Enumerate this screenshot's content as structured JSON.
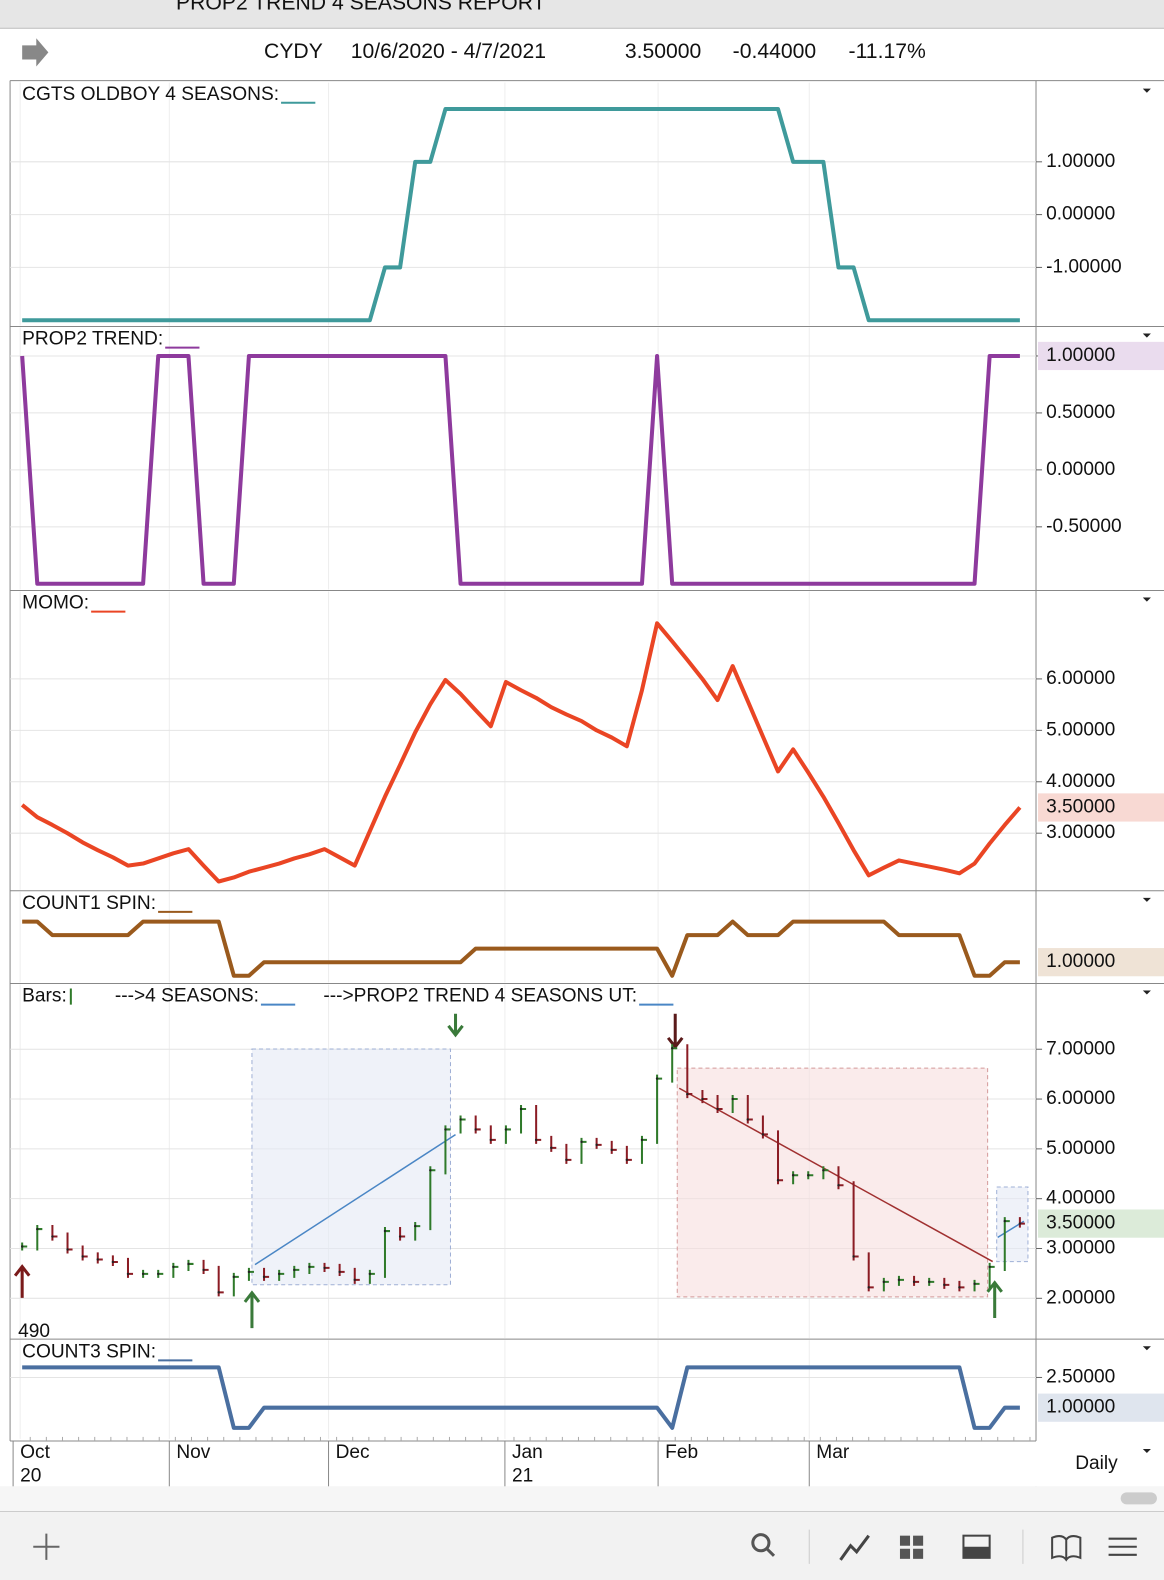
{
  "header": {
    "title": "PROP2 TREND 4 SEASONS  REPORT",
    "symbol": "CYDY",
    "range": "10/6/2020 - 4/7/2021",
    "last": "3.50000",
    "change": "-0.44000",
    "change_pct": "-11.17%"
  },
  "x_axis": {
    "months": [
      "Oct",
      "Nov",
      "Dec",
      "Jan",
      "Feb",
      "Mar"
    ],
    "years": [
      "20",
      "21"
    ]
  },
  "interval": "Daily",
  "chart_data": [
    {
      "type": "line",
      "title": "CGTS OLDBOY 4 SEASONS:",
      "ylim": [
        -2.1,
        2.5
      ],
      "yticks": [
        {
          "value": 1,
          "label": "1.00000"
        },
        {
          "value": 0,
          "label": "0.00000"
        },
        {
          "value": -1,
          "label": "-1.00000"
        }
      ],
      "series": [
        {
          "color": "#3f9a9b",
          "values": [
            -2,
            -2,
            -2,
            -2,
            -2,
            -2,
            -2,
            -2,
            -2,
            -2,
            -2,
            -2,
            -2,
            -2,
            -2,
            -2,
            -2,
            -2,
            -2,
            -2,
            -2,
            -2,
            -2,
            -2,
            -1,
            -1,
            1,
            1,
            2,
            2,
            2,
            2,
            2,
            2,
            2,
            2,
            2,
            2,
            2,
            2,
            2,
            2,
            2,
            2,
            2,
            2,
            2,
            2,
            2,
            2,
            2,
            1,
            1,
            1,
            -1,
            -1,
            -2,
            -2,
            -2,
            -2,
            -2,
            -2,
            -2,
            -2,
            -2,
            -2,
            -2
          ]
        }
      ]
    },
    {
      "type": "line",
      "title": "PROP2 TREND:",
      "ylim": [
        -1.05,
        1.25
      ],
      "yticks": [
        {
          "value": 1,
          "label": "1.00000"
        },
        {
          "value": 0.5,
          "label": "0.50000"
        },
        {
          "value": 0,
          "label": "0.00000"
        },
        {
          "value": -0.5,
          "label": "-0.50000"
        }
      ],
      "last_value": {
        "value": 1,
        "label": "1.00000",
        "color": "#eadcee"
      },
      "series": [
        {
          "color": "#8e3a9d",
          "values": [
            1,
            -1,
            -1,
            -1,
            -1,
            -1,
            -1,
            -1,
            -1,
            1,
            1,
            1,
            -1,
            -1,
            -1,
            1,
            1,
            1,
            1,
            1,
            1,
            1,
            1,
            1,
            1,
            1,
            1,
            1,
            1,
            -1,
            -1,
            -1,
            -1,
            -1,
            -1,
            -1,
            -1,
            -1,
            -1,
            -1,
            -1,
            -1,
            1,
            -1,
            -1,
            -1,
            -1,
            -1,
            -1,
            -1,
            -1,
            -1,
            -1,
            -1,
            -1,
            -1,
            -1,
            -1,
            -1,
            -1,
            -1,
            -1,
            -1,
            -1,
            1,
            1,
            1
          ]
        }
      ]
    },
    {
      "type": "line",
      "title": "MOMO:",
      "ylim": [
        1.9,
        7.7
      ],
      "yticks": [
        {
          "value": 6,
          "label": "6.00000"
        },
        {
          "value": 5,
          "label": "5.00000"
        },
        {
          "value": 4,
          "label": "4.00000"
        },
        {
          "value": 3,
          "label": "3.00000"
        }
      ],
      "last_value": {
        "value": 3.5,
        "label": "3.50000",
        "color": "#f8d9d3"
      },
      "series": [
        {
          "color": "#ea4524",
          "values": [
            3.55,
            3.31,
            3.16,
            3.0,
            2.82,
            2.67,
            2.53,
            2.37,
            2.41,
            2.51,
            2.61,
            2.69,
            2.37,
            2.06,
            2.14,
            2.25,
            2.33,
            2.41,
            2.51,
            2.59,
            2.69,
            2.53,
            2.37,
            3.04,
            3.71,
            4.33,
            4.96,
            5.51,
            5.98,
            5.71,
            5.39,
            5.08,
            5.94,
            5.78,
            5.63,
            5.45,
            5.31,
            5.18,
            5.0,
            4.86,
            4.69,
            5.78,
            7.08,
            6.73,
            6.37,
            6.0,
            5.59,
            6.25,
            5.57,
            4.88,
            4.2,
            4.63,
            4.18,
            3.71,
            3.2,
            2.67,
            2.18,
            2.33,
            2.47,
            2.41,
            2.35,
            2.29,
            2.22,
            2.41,
            2.8,
            3.16,
            3.5
          ]
        }
      ]
    },
    {
      "type": "line",
      "title": "COUNT1 SPIN:",
      "ylim": [
        -0.5,
        6.2
      ],
      "yticks": [],
      "last_value": {
        "value": 1,
        "label": "1.00000",
        "color": "#efe3d6"
      },
      "series": [
        {
          "color": "#9a5a1d",
          "values": [
            4,
            4,
            3,
            3,
            3,
            3,
            3,
            3,
            4,
            4,
            4,
            4,
            4,
            4,
            0,
            0,
            1,
            1,
            1,
            1,
            1,
            1,
            1,
            1,
            1,
            1,
            1,
            1,
            1,
            1,
            2,
            2,
            2,
            2,
            2,
            2,
            2,
            2,
            2,
            2,
            2,
            2,
            2,
            0,
            3,
            3,
            3,
            4,
            3,
            3,
            3,
            4,
            4,
            4,
            4,
            4,
            4,
            4,
            3,
            3,
            3,
            3,
            3,
            0,
            0,
            1,
            1
          ]
        }
      ]
    },
    {
      "type": "ohlc",
      "title": "Bars:",
      "legend_items": [
        "--->4 SEASONS:",
        "--->PROP2 TREND 4 SEASONS UT:"
      ],
      "annotation": "490",
      "ylim": [
        1.2,
        8.3
      ],
      "yticks": [
        {
          "value": 7,
          "label": "7.00000"
        },
        {
          "value": 6,
          "label": "6.00000"
        },
        {
          "value": 5,
          "label": "5.00000"
        },
        {
          "value": 4,
          "label": "4.00000"
        },
        {
          "value": 3,
          "label": "3.00000"
        },
        {
          "value": 2,
          "label": "2.00000"
        }
      ],
      "last_value": {
        "value": 3.5,
        "label": "3.50000",
        "color": "#dcebd9"
      },
      "series": [
        {
          "color": "#2f7a2a",
          "values": [
            3.04,
            3.39,
            3.24,
            2.98,
            2.84,
            2.78,
            2.73,
            2.49,
            2.49,
            2.49,
            2.63,
            2.69,
            2.57,
            2.12,
            2.43,
            2.53,
            2.43,
            2.49,
            2.57,
            2.63,
            2.61,
            2.53,
            2.37,
            2.49,
            3.35,
            3.24,
            3.45,
            4.57,
            5.39,
            5.59,
            5.39,
            5.18,
            5.39,
            5.8,
            5.18,
            5.02,
            4.78,
            5.14,
            5.08,
            4.98,
            4.78,
            5.18,
            6.41,
            7.02,
            6.1,
            6.0,
            5.8,
            6.0,
            5.59,
            5.29,
            4.37,
            4.47,
            4.47,
            4.57,
            4.27,
            2.84,
            2.22,
            2.33,
            2.37,
            2.33,
            2.33,
            2.27,
            2.22,
            2.29,
            2.63,
            3.55,
            3.5
          ]
        }
      ]
    },
    {
      "type": "line",
      "title": "COUNT3 SPIN:",
      "ylim": [
        -0.55,
        4.35
      ],
      "yticks": [
        {
          "value": 2.5,
          "label": "2.50000"
        }
      ],
      "last_value": {
        "value": 1,
        "label": "1.00000",
        "color": "#dfe5ee"
      },
      "series": [
        {
          "color": "#4a6fa0",
          "values": [
            3,
            3,
            3,
            3,
            3,
            3,
            3,
            3,
            3,
            3,
            3,
            3,
            3,
            3,
            0,
            0,
            1,
            1,
            1,
            1,
            1,
            1,
            1,
            1,
            1,
            1,
            1,
            1,
            1,
            1,
            1,
            1,
            1,
            1,
            1,
            1,
            1,
            1,
            1,
            1,
            1,
            1,
            1,
            0,
            3,
            3,
            3,
            3,
            3,
            3,
            3,
            3,
            3,
            3,
            3,
            3,
            3,
            3,
            3,
            3,
            3,
            3,
            3,
            0,
            0,
            1,
            1
          ]
        }
      ]
    }
  ]
}
